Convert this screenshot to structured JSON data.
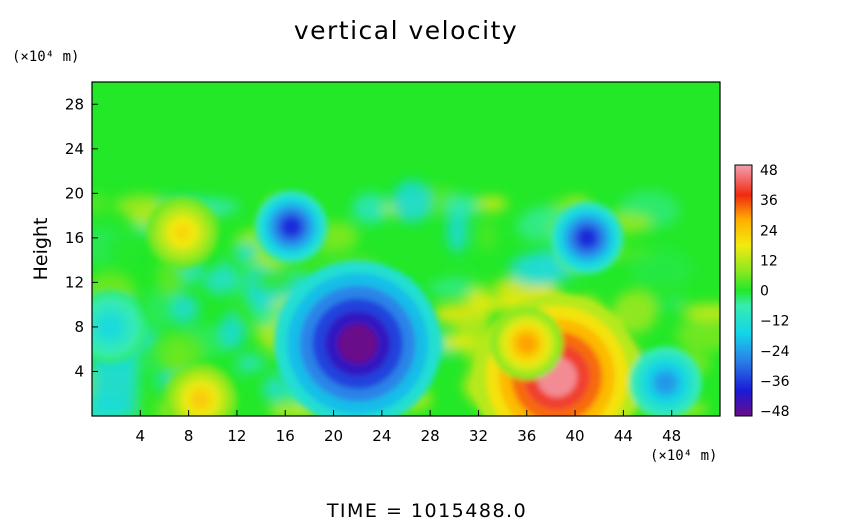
{
  "chart_data": {
    "type": "heatmap",
    "title": "vertical velocity",
    "ylabel": "Height",
    "y_unit": "(×10⁴ m)",
    "x_unit": "(×10⁴ m)",
    "xlim": [
      0,
      52
    ],
    "ylim": [
      0,
      30
    ],
    "x_ticks": [
      "4",
      "8",
      "12",
      "16",
      "20",
      "24",
      "28",
      "32",
      "36",
      "40",
      "44",
      "48"
    ],
    "y_ticks": [
      "4",
      "8",
      "12",
      "16",
      "20",
      "24",
      "28"
    ],
    "colorbar": {
      "range": [
        -48,
        48
      ],
      "ticks": [
        "48",
        "36",
        "24",
        "12",
        "0",
        "−12",
        "−24",
        "−36",
        "−48"
      ]
    },
    "background_value": 0,
    "features": [
      {
        "x": 38.5,
        "y": 3.5,
        "value": 46,
        "kind": "updraft maximum"
      },
      {
        "x": 36.0,
        "y": 6.5,
        "value": 28,
        "kind": "updraft region"
      },
      {
        "x": 22.0,
        "y": 6.5,
        "value": -48,
        "kind": "downdraft minimum"
      },
      {
        "x": 16.5,
        "y": 17.0,
        "value": -36,
        "kind": "downdraft"
      },
      {
        "x": 41.0,
        "y": 16.0,
        "value": -36,
        "kind": "downdraft"
      },
      {
        "x": 47.5,
        "y": 3.0,
        "value": -24,
        "kind": "downdraft"
      },
      {
        "x": 7.5,
        "y": 16.5,
        "value": 20,
        "kind": "updraft"
      },
      {
        "x": 9.0,
        "y": 1.5,
        "value": 22,
        "kind": "updraft"
      },
      {
        "x": 1.5,
        "y": 8.0,
        "value": -14,
        "kind": "downdraft"
      }
    ],
    "footer": "TIME  =  1015488.0"
  }
}
